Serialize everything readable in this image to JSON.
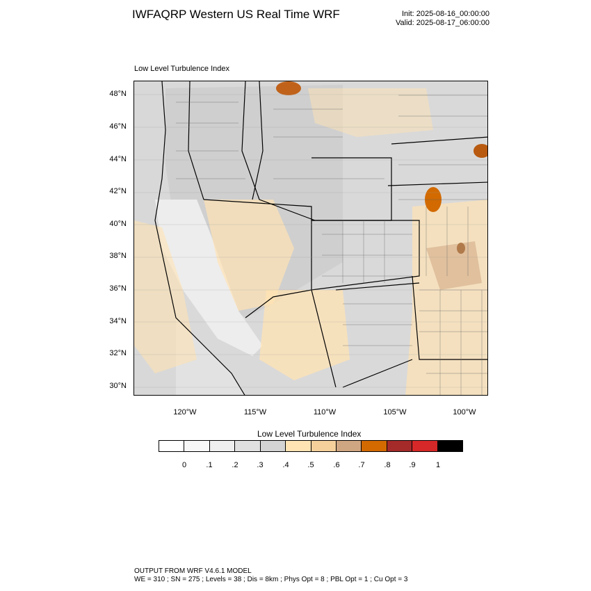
{
  "header": {
    "title": "IWFAQRP Western US Real Time WRF",
    "init": "Init: 2025-08-16_00:00:00",
    "valid": "Valid: 2025-08-17_06:00:00"
  },
  "plot": {
    "subtitle": "Low Level Turbulence Index",
    "lat_labels": [
      "48°N",
      "46°N",
      "44°N",
      "42°N",
      "40°N",
      "38°N",
      "36°N",
      "34°N",
      "32°N",
      "30°N"
    ],
    "lon_labels": [
      "120°W",
      "115°W",
      "110°W",
      "105°W",
      "100°W"
    ]
  },
  "colorbar": {
    "title": "Low Level Turbulence Index",
    "labels": [
      "0",
      ".1",
      ".2",
      ".3",
      ".4",
      ".5",
      ".6",
      ".7",
      ".8",
      ".9",
      "1"
    ],
    "colors": [
      "#ffffff",
      "#f7f7f7",
      "#efefef",
      "#e0e0e0",
      "#d3d3d3",
      "#ffe3b3",
      "#f5d09b",
      "#cfa682",
      "#d26a00",
      "#a52a2a",
      "#d62828",
      "#000000"
    ]
  },
  "footer": {
    "line1": "OUTPUT FROM WRF V4.6.1 MODEL",
    "line2": "WE = 310 ; SN = 275 ; Levels = 38 ; Dis = 8km ; Phys Opt = 8 ; PBL Opt = 1 ; Cu Opt = 3"
  }
}
